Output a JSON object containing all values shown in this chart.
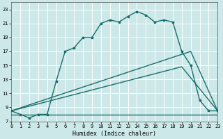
{
  "xlabel": "Humidex (Indice chaleur)",
  "bg_color": "#cce8e8",
  "grid_color": "#aacccc",
  "line_color": "#1a6e6e",
  "xlim": [
    0,
    23
  ],
  "ylim": [
    7,
    24
  ],
  "xticks": [
    0,
    1,
    2,
    3,
    4,
    5,
    6,
    7,
    8,
    9,
    10,
    11,
    12,
    13,
    14,
    15,
    16,
    17,
    18,
    19,
    20,
    21,
    22,
    23
  ],
  "yticks": [
    7,
    9,
    11,
    13,
    15,
    17,
    19,
    21,
    23
  ],
  "curve_main": {
    "x": [
      0,
      1,
      2,
      3,
      4,
      5,
      6,
      7,
      8,
      9,
      10,
      11,
      12,
      13,
      14,
      15,
      16,
      17,
      18,
      19,
      20,
      21,
      22,
      23
    ],
    "y": [
      8.5,
      8.0,
      7.5,
      8.0,
      8.0,
      12.7,
      17.0,
      17.5,
      19.0,
      19.0,
      21.0,
      21.5,
      21.2,
      22.0,
      22.7,
      22.2,
      21.2,
      21.5,
      21.2,
      17.0,
      15.0,
      10.0,
      8.5,
      8.5
    ]
  },
  "line_tri1": {
    "x": [
      0,
      20,
      23
    ],
    "y": [
      8.5,
      17.0,
      8.5
    ]
  },
  "line_tri2": {
    "x": [
      0,
      19,
      23
    ],
    "y": [
      8.5,
      14.8,
      8.5
    ]
  },
  "line_flat": {
    "x": [
      0,
      23
    ],
    "y": [
      8.0,
      8.0
    ]
  }
}
